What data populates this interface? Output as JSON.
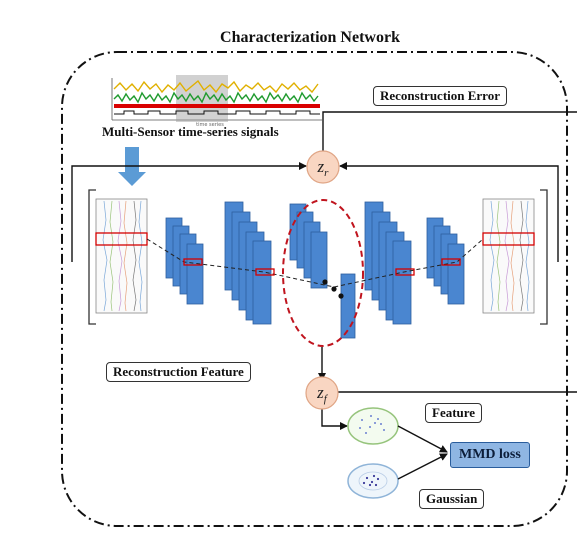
{
  "title": "Characterization Network",
  "labels": {
    "signals": "Multi-Sensor time-series signals",
    "recon_error": "Reconstruction Error",
    "recon_feature": "Reconstruction Feature",
    "feature": "Feature",
    "gaussian": "Gaussian",
    "mmd_loss": "MMD loss",
    "mini_axis": "time series"
  },
  "nodes": {
    "zr": {
      "base": "z",
      "sub": "r"
    },
    "zf": {
      "base": "z",
      "sub": "f"
    }
  },
  "colors": {
    "layer_fill": "#4a86d0",
    "layer_stroke": "#2e5f9e",
    "node_fill": "#f9d6c2",
    "node_stroke": "#e0a585",
    "ellipse_red": "#c0141e",
    "arrow_blue": "#5b9bd5",
    "signal_yellow": "#e0b000",
    "signal_green": "#1f9a2e",
    "signal_red": "#d90000"
  }
}
